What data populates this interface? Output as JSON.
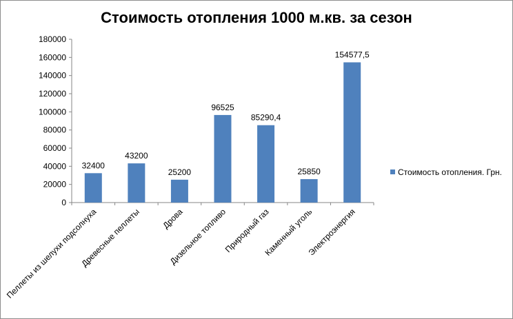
{
  "chart_data": {
    "type": "bar",
    "title": "Стоимость отопления 1000 м.кв. за сезон",
    "xlabel": "",
    "ylabel": "",
    "categories": [
      "Пеллеты из шелухи подсолнуха",
      "Древесные пеллеты",
      "Дрова",
      "Дизельное топливо",
      "Природный газ",
      "Каменный уголь",
      "Электроэнергия"
    ],
    "series": [
      {
        "name": "Стоимость отопления. Грн.",
        "color": "#4f81bd",
        "values": [
          32400,
          43200,
          25200,
          96525,
          85290.4,
          25850,
          154577.5
        ],
        "labels": [
          "32400",
          "43200",
          "25200",
          "96525",
          "85290,4",
          "25850",
          "154577,5"
        ]
      }
    ],
    "ylim": [
      0,
      180000
    ],
    "yticks": [
      "0",
      "20000",
      "40000",
      "60000",
      "80000",
      "100000",
      "120000",
      "140000",
      "160000",
      "180000"
    ],
    "grid": false,
    "legend_position": "right"
  }
}
